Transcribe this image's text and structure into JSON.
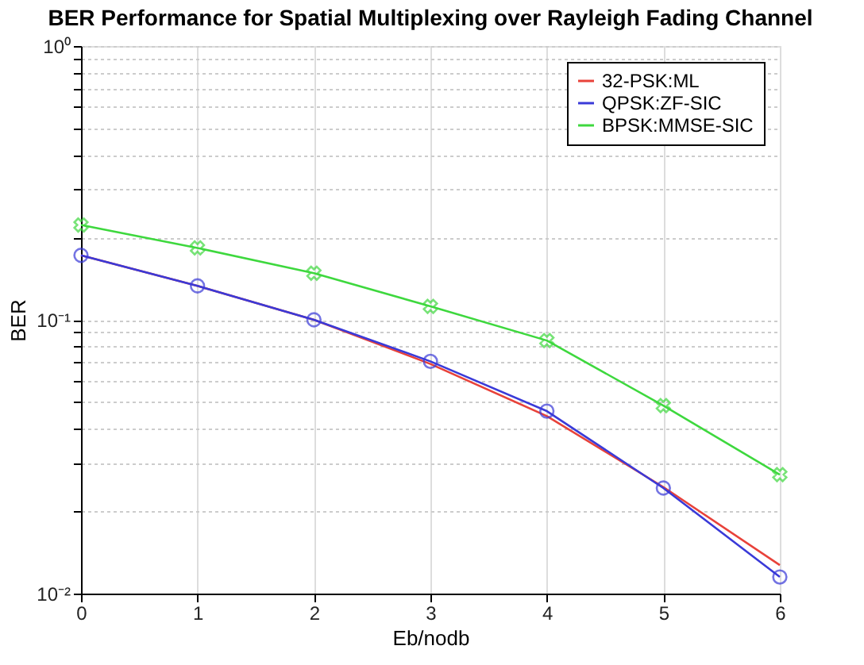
{
  "chart_data": {
    "type": "line",
    "title": "BER Performance for Spatial Multiplexing over Rayleigh Fading Channel",
    "xlabel": "Eb/nodb",
    "ylabel": "BER",
    "x": [
      0,
      1,
      2,
      3,
      4,
      5,
      6
    ],
    "xlim": [
      0,
      6
    ],
    "xticks": [
      0,
      1,
      2,
      3,
      4,
      5,
      6
    ],
    "ylim": [
      0.01,
      1
    ],
    "log": "y",
    "grid": true,
    "legend": "top right",
    "line_style": "solid",
    "yticks": [
      {
        "value": 0.01,
        "label": "10⁻²"
      },
      {
        "value": 0.02,
        "label": null
      },
      {
        "value": 0.03,
        "label": null
      },
      {
        "value": 0.04,
        "label": null
      },
      {
        "value": 0.05,
        "label": null
      },
      {
        "value": 0.06,
        "label": null
      },
      {
        "value": 0.07,
        "label": null
      },
      {
        "value": 0.08,
        "label": null
      },
      {
        "value": 0.09,
        "label": null
      },
      {
        "value": 0.1,
        "label": "10⁻¹"
      },
      {
        "value": 0.2,
        "label": null
      },
      {
        "value": 0.3,
        "label": null
      },
      {
        "value": 0.4,
        "label": null
      },
      {
        "value": 0.5,
        "label": null
      },
      {
        "value": 0.6,
        "label": null
      },
      {
        "value": 0.7,
        "label": null
      },
      {
        "value": 0.8,
        "label": null
      },
      {
        "value": 0.9,
        "label": null
      },
      {
        "value": 1,
        "label": "10⁰"
      }
    ],
    "series": [
      {
        "name": "32-PSK:ML",
        "color": "#e8423a",
        "marker": "none",
        "values": [
          0.172,
          0.133,
          0.1,
          0.069,
          0.0445,
          0.0245,
          0.0127
        ]
      },
      {
        "name": "QPSK:ZF-SIC",
        "color": "#3a3ad8",
        "marker": "circle",
        "values": [
          0.172,
          0.133,
          0.1,
          0.0705,
          0.0464,
          0.0243,
          0.0115
        ]
      },
      {
        "name": "BPSK:MMSE-SIC",
        "color": "#3ed83e",
        "marker": "cross",
        "values": [
          0.222,
          0.183,
          0.148,
          0.112,
          0.084,
          0.0486,
          0.0272
        ]
      }
    ]
  }
}
